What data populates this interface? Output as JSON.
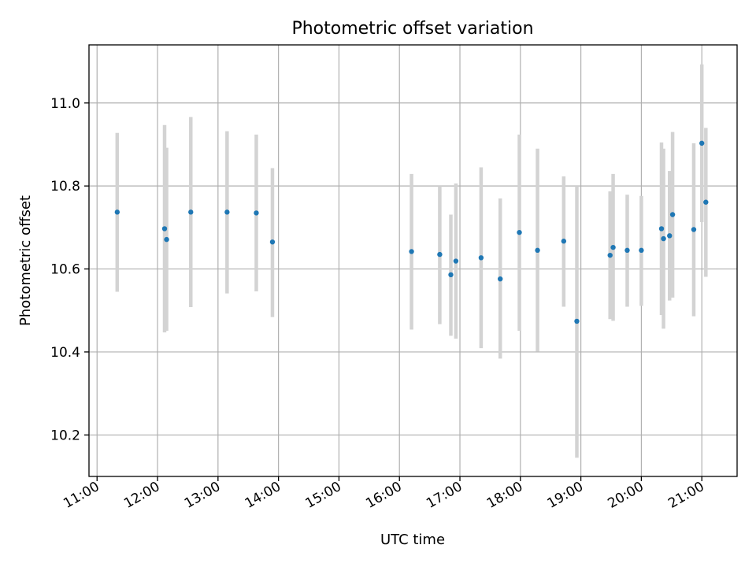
{
  "chart_data": {
    "type": "scatter",
    "title": "Photometric offset variation",
    "xlabel": "UTC time",
    "ylabel": "Photometric offset",
    "x_ticks": [
      "11:00",
      "12:00",
      "13:00",
      "14:00",
      "15:00",
      "16:00",
      "17:00",
      "18:00",
      "19:00",
      "20:00",
      "21:00"
    ],
    "y_ticks": [
      "10.2",
      "10.4",
      "10.6",
      "10.8",
      "11.0"
    ],
    "xlim": [
      "10:52",
      "21:35"
    ],
    "ylim": [
      10.1,
      11.14
    ],
    "grid": true,
    "errorbar_color": "#d3d3d3",
    "point_color": "#1f77b4",
    "points": [
      {
        "t": "11:20",
        "y": 10.737,
        "lo": 10.545,
        "hi": 10.928
      },
      {
        "t": "12:07",
        "y": 10.697,
        "lo": 10.447,
        "hi": 10.947
      },
      {
        "t": "12:09",
        "y": 10.671,
        "lo": 10.451,
        "hi": 10.892
      },
      {
        "t": "12:33",
        "y": 10.737,
        "lo": 10.508,
        "hi": 10.966
      },
      {
        "t": "13:09",
        "y": 10.737,
        "lo": 10.541,
        "hi": 10.932
      },
      {
        "t": "13:38",
        "y": 10.735,
        "lo": 10.546,
        "hi": 10.924
      },
      {
        "t": "13:54",
        "y": 10.665,
        "lo": 10.484,
        "hi": 10.843
      },
      {
        "t": "16:12",
        "y": 10.642,
        "lo": 10.454,
        "hi": 10.829
      },
      {
        "t": "16:40",
        "y": 10.635,
        "lo": 10.467,
        "hi": 10.8
      },
      {
        "t": "16:51",
        "y": 10.586,
        "lo": 10.439,
        "hi": 10.731
      },
      {
        "t": "16:56",
        "y": 10.619,
        "lo": 10.432,
        "hi": 10.806
      },
      {
        "t": "17:21",
        "y": 10.627,
        "lo": 10.409,
        "hi": 10.845
      },
      {
        "t": "17:40",
        "y": 10.576,
        "lo": 10.384,
        "hi": 10.77
      },
      {
        "t": "17:59",
        "y": 10.688,
        "lo": 10.451,
        "hi": 10.924
      },
      {
        "t": "18:17",
        "y": 10.645,
        "lo": 10.401,
        "hi": 10.89
      },
      {
        "t": "18:43",
        "y": 10.667,
        "lo": 10.509,
        "hi": 10.823
      },
      {
        "t": "18:56",
        "y": 10.474,
        "lo": 10.145,
        "hi": 10.8
      },
      {
        "t": "19:29",
        "y": 10.633,
        "lo": 10.479,
        "hi": 10.787
      },
      {
        "t": "19:32",
        "y": 10.652,
        "lo": 10.475,
        "hi": 10.829
      },
      {
        "t": "19:46",
        "y": 10.645,
        "lo": 10.509,
        "hi": 10.779
      },
      {
        "t": "20:00",
        "y": 10.645,
        "lo": 10.511,
        "hi": 10.776
      },
      {
        "t": "20:20",
        "y": 10.697,
        "lo": 10.489,
        "hi": 10.905
      },
      {
        "t": "20:22",
        "y": 10.673,
        "lo": 10.456,
        "hi": 10.89
      },
      {
        "t": "20:28",
        "y": 10.68,
        "lo": 10.524,
        "hi": 10.836
      },
      {
        "t": "20:31",
        "y": 10.731,
        "lo": 10.531,
        "hi": 10.93
      },
      {
        "t": "20:52",
        "y": 10.695,
        "lo": 10.486,
        "hi": 10.903
      },
      {
        "t": "21:00",
        "y": 10.903,
        "lo": 10.713,
        "hi": 11.093
      },
      {
        "t": "21:04",
        "y": 10.761,
        "lo": 10.581,
        "hi": 10.94
      }
    ]
  }
}
